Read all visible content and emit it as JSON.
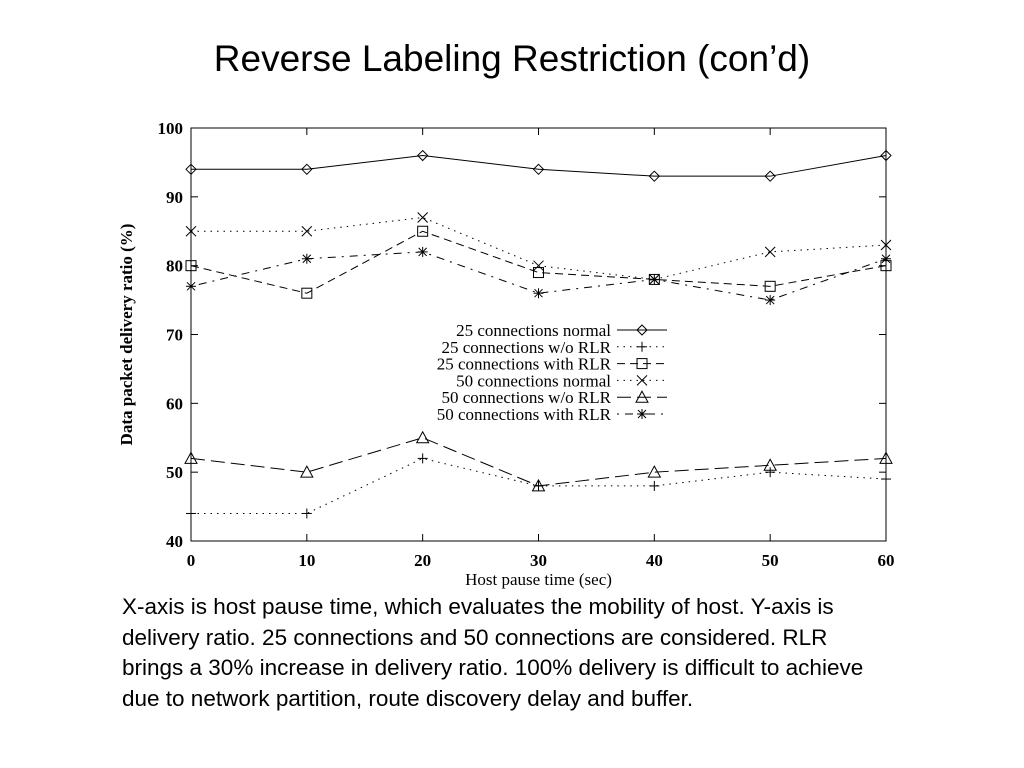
{
  "slide": {
    "title": "Reverse Labeling Restriction (con’d)",
    "caption": "X-axis is host pause time, which evaluates the mobility of host. Y-axis is delivery ratio. 25 connections and 50 connections are considered. RLR brings a 30% increase in delivery ratio. 100% delivery is difficult to achieve due to network partition, route discovery delay and buffer."
  },
  "chart_data": {
    "type": "line",
    "title": "",
    "xlabel": "Host pause time (sec)",
    "ylabel": "Data packet delivery ratio (%)",
    "xlim": [
      0,
      60
    ],
    "ylim": [
      40,
      100
    ],
    "xticks": [
      0,
      10,
      20,
      30,
      40,
      50,
      60
    ],
    "yticks": [
      40,
      50,
      60,
      70,
      80,
      90,
      100
    ],
    "grid": false,
    "legend_position": "center-right",
    "x": [
      0,
      10,
      20,
      30,
      40,
      50,
      60
    ],
    "series": [
      {
        "name": "25 connections normal",
        "marker": "diamond",
        "dash": "solid",
        "values": [
          94,
          94,
          96,
          94,
          93,
          93,
          96
        ]
      },
      {
        "name": "25 connections w/o RLR",
        "marker": "plus",
        "dash": "dotted",
        "values": [
          44,
          44,
          52,
          48,
          48,
          50,
          49
        ]
      },
      {
        "name": "25 connections with RLR",
        "marker": "square",
        "dash": "dashed",
        "values": [
          80,
          76,
          85,
          79,
          78,
          77,
          80
        ]
      },
      {
        "name": "50 connections normal",
        "marker": "cross",
        "dash": "dotted",
        "values": [
          85,
          85,
          87,
          80,
          78,
          82,
          83
        ]
      },
      {
        "name": "50 connections w/o RLR",
        "marker": "triangle",
        "dash": "longdash",
        "values": [
          52,
          50,
          55,
          48,
          50,
          51,
          52
        ]
      },
      {
        "name": "50 connections with RLR",
        "marker": "star",
        "dash": "dashdot",
        "values": [
          77,
          81,
          82,
          76,
          78,
          75,
          81
        ]
      }
    ]
  }
}
